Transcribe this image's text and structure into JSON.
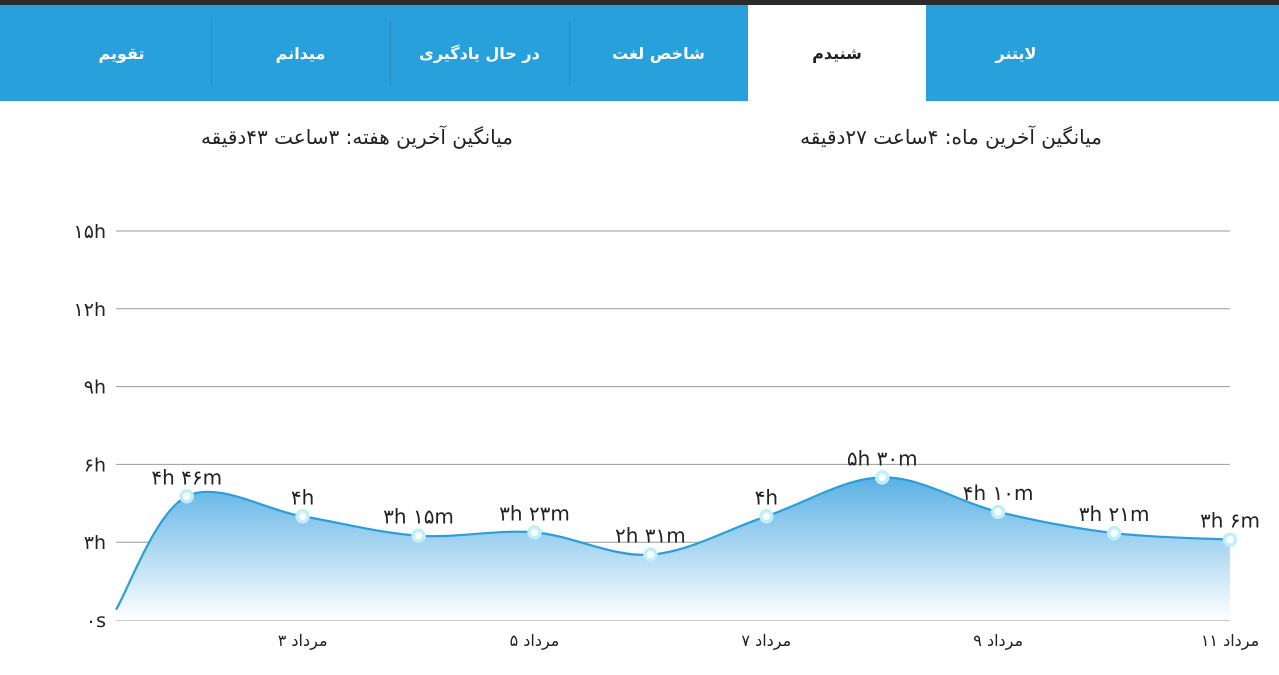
{
  "tabs": [
    {
      "label": "لایتنر",
      "active": false
    },
    {
      "label": "شنیدم",
      "active": true
    },
    {
      "label": "شاخص لغت",
      "active": false
    },
    {
      "label": "در حال یادگیری",
      "active": false
    },
    {
      "label": "میدانم",
      "active": false
    },
    {
      "label": "تقویم",
      "active": false
    }
  ],
  "averages": {
    "month": "میانگین آخرین ماه: ۴ساعت  ۲۷دقیقه",
    "week": "میانگین آخرین هفته: ۳ساعت  ۴۳دقیقه"
  },
  "colors": {
    "tab_bar": "#28a0dc",
    "line": "#2a9ed8",
    "marker": "#bfeefc",
    "area_top": "#5ab0e4",
    "area_bottom": "#ffffff"
  },
  "chart_data": {
    "type": "area",
    "title": "",
    "xlabel": "",
    "ylabel": "",
    "ylim": [
      0,
      15
    ],
    "y_ticks": [
      {
        "value": 0,
        "label": "۰s"
      },
      {
        "value": 3,
        "label": "۳h"
      },
      {
        "value": 6,
        "label": "۶h"
      },
      {
        "value": 9,
        "label": "۹h"
      },
      {
        "value": 12,
        "label": "۱۲h"
      },
      {
        "value": 15,
        "label": "۱۵h"
      }
    ],
    "x_tick_labels": [
      {
        "x": 3,
        "label": "۳ مرداد"
      },
      {
        "x": 5,
        "label": "۵ مرداد"
      },
      {
        "x": 7,
        "label": "۷ مرداد"
      },
      {
        "x": 9,
        "label": "۹ مرداد"
      },
      {
        "x": 11,
        "label": "۱۱ مرداد"
      }
    ],
    "start_value": 0.4,
    "points": [
      {
        "x": 2,
        "hours": 4.77,
        "label": "۴h ۴۶m"
      },
      {
        "x": 3,
        "hours": 4.0,
        "label": "۴h"
      },
      {
        "x": 4,
        "hours": 3.25,
        "label": "۳h ۱۵m"
      },
      {
        "x": 5,
        "hours": 3.38,
        "label": "۳h ۲۳m"
      },
      {
        "x": 6,
        "hours": 2.52,
        "label": "۲h ۳۱m"
      },
      {
        "x": 7,
        "hours": 4.0,
        "label": "۴h"
      },
      {
        "x": 8,
        "hours": 5.5,
        "label": "۵h ۳۰m"
      },
      {
        "x": 9,
        "hours": 4.17,
        "label": "۴h ۱۰m"
      },
      {
        "x": 10,
        "hours": 3.35,
        "label": "۳h ۲۱m"
      },
      {
        "x": 11,
        "hours": 3.1,
        "label": "۳h ۶m"
      }
    ]
  }
}
